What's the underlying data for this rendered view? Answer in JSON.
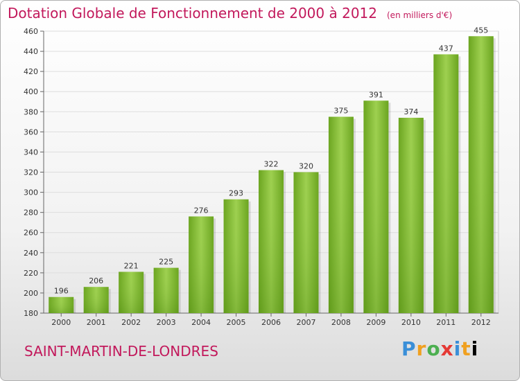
{
  "header": {
    "title": "Dotation Globale de Fonctionnement de 2000 à 2012",
    "unit": "(en milliers d'€)"
  },
  "footer": {
    "commune": "SAINT-MARTIN-DE-LONDRES",
    "logo": [
      "P",
      "r",
      "o",
      "x",
      "i",
      "t",
      "i"
    ],
    "logo_text": "Proxiti"
  },
  "chart_data": {
    "type": "bar",
    "title": "Dotation Globale de Fonctionnement de 2000 à 2012",
    "subtitle": "(en milliers d'€)",
    "xlabel": "",
    "ylabel": "",
    "categories": [
      "2000",
      "2001",
      "2002",
      "2003",
      "2004",
      "2005",
      "2006",
      "2007",
      "2008",
      "2009",
      "2010",
      "2011",
      "2012"
    ],
    "values": [
      196,
      206,
      221,
      225,
      276,
      293,
      322,
      320,
      375,
      391,
      374,
      437,
      455
    ],
    "ylim": [
      180,
      460
    ],
    "yticks": [
      180,
      200,
      220,
      240,
      260,
      280,
      300,
      320,
      340,
      360,
      380,
      400,
      420,
      440,
      460
    ],
    "grid": true,
    "bar_color": "#7cb82f"
  }
}
